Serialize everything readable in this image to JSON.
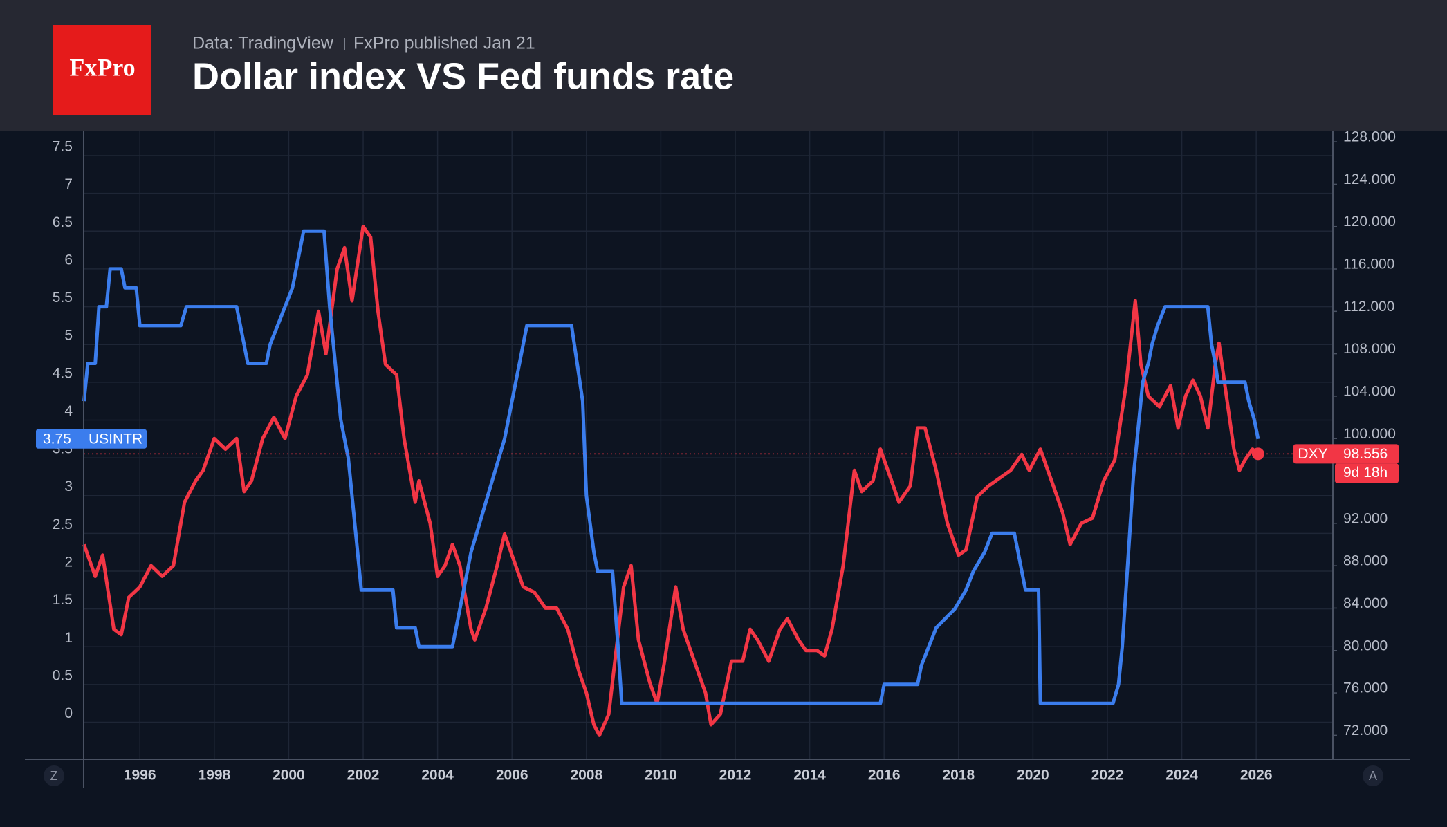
{
  "header": {
    "source": "Data: TradingView",
    "published": "FxPro published Jan 21",
    "logo": "FxPro"
  },
  "chart_data": {
    "type": "line",
    "title": "Dollar index VS Fed funds rate",
    "xlim": [
      1994.49,
      2028.06
    ],
    "xticks": [
      1996,
      1998,
      2000,
      2002,
      2004,
      2006,
      2008,
      2010,
      2012,
      2014,
      2016,
      2018,
      2020,
      2022,
      2024,
      2026
    ],
    "ylim": [
      -0.49,
      7.83
    ],
    "yticks": [
      0,
      0.5,
      1,
      1.5,
      2,
      2.5,
      3,
      3.5,
      4,
      4.5,
      5,
      5.5,
      6,
      6.5,
      7,
      7.5
    ],
    "y2lim": [
      69.74,
      129.05
    ],
    "y2ticks": [
      {
        "value": 72,
        "label": "72.000"
      },
      {
        "value": 76,
        "label": "76.000"
      },
      {
        "value": 80,
        "label": "80.000"
      },
      {
        "value": 84,
        "label": "84.000"
      },
      {
        "value": 88,
        "label": "88.000"
      },
      {
        "value": 92,
        "label": "92.000"
      },
      {
        "value": 96,
        "label": "96.000"
      },
      {
        "value": 100,
        "label": "100.000"
      },
      {
        "value": 104,
        "label": "104.000"
      },
      {
        "value": 108,
        "label": "108.000"
      },
      {
        "value": 112,
        "label": "112.000"
      },
      {
        "value": 116,
        "label": "116.000"
      },
      {
        "value": 120,
        "label": "120.000"
      },
      {
        "value": 124,
        "label": "124.000"
      },
      {
        "value": 128,
        "label": "128.000"
      }
    ],
    "grid": true,
    "countdown": "9d 18h",
    "buttons": [
      "Z",
      "A"
    ],
    "series": [
      {
        "name": "USINTR",
        "color": "#3b7ded",
        "axis": "y",
        "x": [
          1994.5,
          1994.6,
          1994.8,
          1994.9,
          1995.1,
          1995.2,
          1995.5,
          1995.6,
          1995.9,
          1996.0,
          1997.1,
          1997.25,
          1998.6,
          1998.8,
          1998.9,
          1999.4,
          1999.5,
          1999.7,
          1999.9,
          2000.1,
          2000.2,
          2000.4,
          2000.95,
          2001.1,
          2001.2,
          2001.4,
          2001.6,
          2001.8,
          2001.95,
          2002.8,
          2002.9,
          2003.4,
          2003.5,
          2004.4,
          2004.5,
          2004.7,
          2004.9,
          2005.2,
          2005.5,
          2005.8,
          2006.0,
          2006.2,
          2006.4,
          2007.6,
          2007.75,
          2007.9,
          2008.0,
          2008.2,
          2008.3,
          2008.7,
          2008.85,
          2008.95,
          2015.9,
          2016.0,
          2016.9,
          2017.0,
          2017.2,
          2017.4,
          2017.9,
          2018.2,
          2018.4,
          2018.7,
          2018.9,
          2019.5,
          2019.6,
          2019.7,
          2019.8,
          2020.15,
          2020.2,
          2022.15,
          2022.3,
          2022.4,
          2022.5,
          2022.6,
          2022.7,
          2022.85,
          2022.95,
          2023.1,
          2023.2,
          2023.35,
          2023.55,
          2024.7,
          2024.8,
          2024.9,
          2024.97,
          2025.7,
          2025.8,
          2025.95,
          2026.05
        ],
        "values": [
          4.25,
          4.75,
          4.75,
          5.5,
          5.5,
          6.0,
          6.0,
          5.75,
          5.75,
          5.25,
          5.25,
          5.5,
          5.5,
          5.0,
          4.75,
          4.75,
          5.0,
          5.25,
          5.5,
          5.75,
          6.0,
          6.5,
          6.5,
          5.5,
          5.0,
          4.0,
          3.5,
          2.5,
          1.75,
          1.75,
          1.25,
          1.25,
          1.0,
          1.0,
          1.25,
          1.75,
          2.25,
          2.75,
          3.25,
          3.75,
          4.25,
          4.75,
          5.25,
          5.25,
          4.75,
          4.25,
          3.0,
          2.25,
          2.0,
          2.0,
          1.0,
          0.25,
          0.25,
          0.5,
          0.5,
          0.75,
          1.0,
          1.25,
          1.5,
          1.75,
          2.0,
          2.25,
          2.5,
          2.5,
          2.25,
          2.0,
          1.75,
          1.75,
          0.25,
          0.25,
          0.5,
          1.0,
          1.75,
          2.5,
          3.25,
          4.0,
          4.5,
          4.75,
          5.0,
          5.25,
          5.5,
          5.5,
          5.0,
          4.75,
          4.5,
          4.5,
          4.25,
          4.0,
          3.75
        ]
      },
      {
        "name": "DXY",
        "color": "#f23645",
        "axis": "y2",
        "x": [
          1994.5,
          1994.8,
          1995.0,
          1995.3,
          1995.5,
          1995.7,
          1996.0,
          1996.3,
          1996.6,
          1996.9,
          1997.2,
          1997.5,
          1997.7,
          1998.0,
          1998.3,
          1998.6,
          1998.8,
          1999.0,
          1999.3,
          1999.6,
          1999.9,
          2000.2,
          2000.5,
          2000.8,
          2001.0,
          2001.3,
          2001.5,
          2001.7,
          2002.0,
          2002.2,
          2002.4,
          2002.6,
          2002.9,
          2003.1,
          2003.4,
          2003.5,
          2003.8,
          2004.0,
          2004.2,
          2004.4,
          2004.6,
          2004.9,
          2005.0,
          2005.3,
          2005.6,
          2005.8,
          2006.0,
          2006.3,
          2006.6,
          2006.9,
          2007.2,
          2007.5,
          2007.8,
          2008.0,
          2008.2,
          2008.35,
          2008.6,
          2008.8,
          2009.0,
          2009.2,
          2009.4,
          2009.7,
          2009.9,
          2010.1,
          2010.4,
          2010.6,
          2010.9,
          2011.2,
          2011.35,
          2011.6,
          2011.9,
          2012.2,
          2012.4,
          2012.6,
          2012.9,
          2013.2,
          2013.4,
          2013.7,
          2013.9,
          2014.2,
          2014.4,
          2014.6,
          2014.9,
          2015.2,
          2015.4,
          2015.7,
          2015.9,
          2016.2,
          2016.4,
          2016.7,
          2016.9,
          2017.1,
          2017.4,
          2017.7,
          2018.0,
          2018.2,
          2018.5,
          2018.8,
          2019.0,
          2019.4,
          2019.7,
          2019.9,
          2020.2,
          2020.5,
          2020.8,
          2021.0,
          2021.3,
          2021.6,
          2021.9,
          2022.2,
          2022.5,
          2022.75,
          2022.9,
          2023.1,
          2023.4,
          2023.7,
          2023.9,
          2024.1,
          2024.3,
          2024.5,
          2024.7,
          2024.9,
          2025.0,
          2025.2,
          2025.4,
          2025.55,
          2025.7,
          2025.9,
          2026.05
        ],
        "values": [
          90,
          87,
          89,
          82,
          81.5,
          85,
          86,
          88,
          87,
          88,
          94,
          96,
          97,
          100,
          99,
          100,
          95,
          96,
          100,
          102,
          100,
          104,
          106,
          112,
          108,
          116,
          118,
          113,
          120,
          119,
          112,
          107,
          106,
          100,
          94,
          96,
          92,
          87,
          88,
          90,
          88,
          82,
          81,
          84,
          88,
          91,
          89,
          86,
          85.5,
          84,
          84,
          82,
          78,
          76,
          73,
          72,
          74,
          80,
          86,
          88,
          81,
          77,
          75,
          79,
          86,
          82,
          79,
          76,
          73,
          74,
          79,
          79,
          82,
          81,
          79,
          82,
          83,
          81,
          80,
          80,
          79.5,
          82,
          88,
          97,
          95,
          96,
          99,
          96,
          94,
          95.5,
          101,
          101,
          97,
          92,
          89,
          89.5,
          94.5,
          95.5,
          96,
          97,
          98.5,
          97,
          99,
          96,
          93,
          90,
          92,
          92.5,
          96,
          98,
          105,
          113,
          107,
          104,
          103,
          105,
          101,
          104,
          105.5,
          104,
          101,
          107,
          109,
          104,
          99,
          97,
          98,
          99,
          98.556
        ]
      }
    ]
  }
}
